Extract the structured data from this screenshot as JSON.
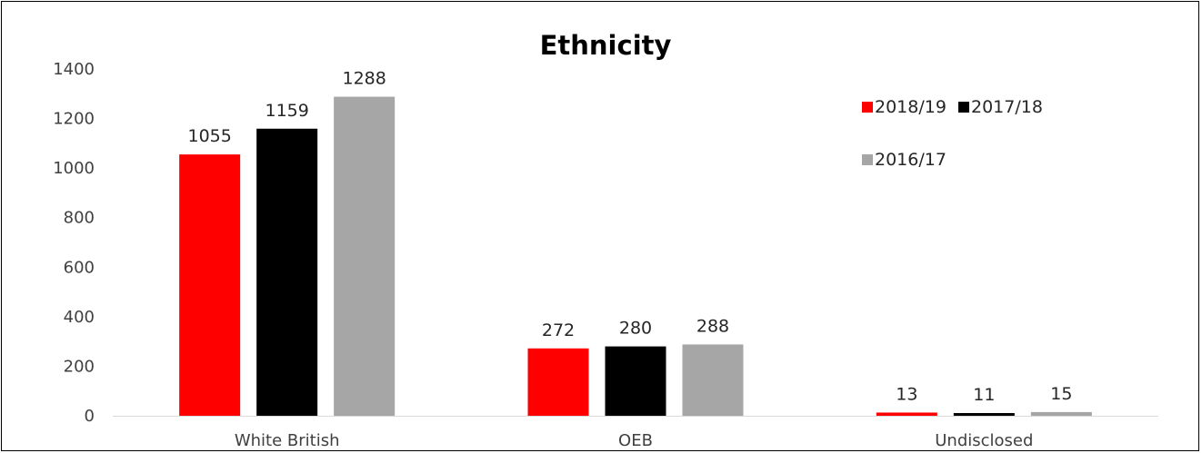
{
  "chart_data": {
    "type": "bar",
    "title": "Ethnicity",
    "categories": [
      "White British",
      "OEB",
      "Undisclosed"
    ],
    "series": [
      {
        "name": "2018/19",
        "color": "#ff0000",
        "values": [
          1055,
          272,
          13
        ]
      },
      {
        "name": "2017/18",
        "color": "#000000",
        "values": [
          1159,
          280,
          11
        ]
      },
      {
        "name": "2016/17",
        "color": "#a6a6a6",
        "values": [
          1288,
          288,
          15
        ]
      }
    ],
    "yticks": [
      0,
      200,
      400,
      600,
      800,
      1000,
      1200,
      1400
    ],
    "ylim": [
      0,
      1400
    ],
    "grid": false,
    "legend_position": "top-right",
    "data_labels": true
  }
}
